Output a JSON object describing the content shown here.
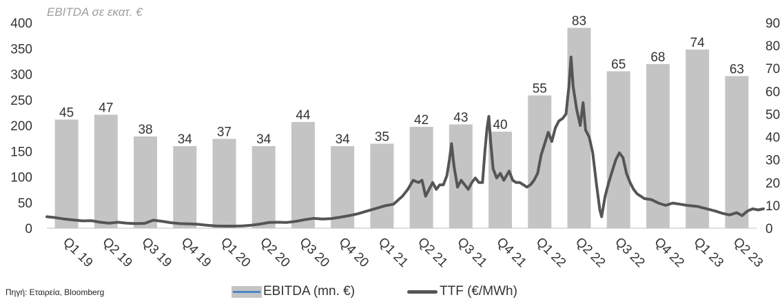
{
  "subtitle": "EBITDA σε εκατ. €",
  "source": "Πηγή: Εταιρεία, Bloomberg",
  "colors": {
    "bar": "#c4c4c4",
    "line": "#555555",
    "legend_bar_accent": "#4a86c5"
  },
  "chart_data": {
    "type": "bar",
    "categories": [
      "Q1 19",
      "Q2 19",
      "Q3 19",
      "Q4 19",
      "Q1 20",
      "Q2 20",
      "Q3 20",
      "Q4 20",
      "Q1 21",
      "Q2 21",
      "Q3 21",
      "Q4 21",
      "Q1 22",
      "Q2 22",
      "Q3 22",
      "Q4 22",
      "Q1 23",
      "Q2 23"
    ],
    "series": [
      {
        "name": "EBITDA (mn. €)",
        "type": "bar",
        "axis": "left",
        "values": [
          45,
          47,
          38,
          34,
          37,
          34,
          44,
          34,
          35,
          42,
          43,
          40,
          55,
          83,
          65,
          68,
          74,
          63
        ],
        "labels": [
          "45",
          "47",
          "38",
          "34",
          "37",
          "34",
          "44",
          "34",
          "35",
          "42",
          "43",
          "40",
          "55",
          "83",
          "65",
          "68",
          "74",
          "63"
        ]
      },
      {
        "name": "TTF (€/MWh)",
        "type": "line",
        "axis": "right",
        "points": [
          [
            0.0,
            5
          ],
          [
            0.25,
            4.6
          ],
          [
            0.5,
            4.0
          ],
          [
            0.75,
            3.6
          ],
          [
            1.0,
            3.2
          ],
          [
            1.25,
            3.3
          ],
          [
            1.5,
            2.6
          ],
          [
            1.75,
            2.2
          ],
          [
            2.0,
            2.6
          ],
          [
            2.25,
            2.2
          ],
          [
            2.5,
            2.0
          ],
          [
            2.75,
            2.1
          ],
          [
            3.0,
            3.5
          ],
          [
            3.25,
            3.0
          ],
          [
            3.5,
            2.4
          ],
          [
            3.75,
            2.0
          ],
          [
            4.0,
            1.9
          ],
          [
            4.25,
            1.7
          ],
          [
            4.5,
            1.3
          ],
          [
            4.75,
            1.0
          ],
          [
            5.0,
            0.9
          ],
          [
            5.25,
            0.9
          ],
          [
            5.5,
            1.0
          ],
          [
            5.75,
            1.3
          ],
          [
            6.0,
            1.8
          ],
          [
            6.25,
            2.5
          ],
          [
            6.5,
            2.6
          ],
          [
            6.75,
            2.5
          ],
          [
            7.0,
            3.0
          ],
          [
            7.25,
            3.7
          ],
          [
            7.5,
            4.3
          ],
          [
            7.75,
            4.0
          ],
          [
            8.0,
            4.2
          ],
          [
            8.25,
            4.8
          ],
          [
            8.5,
            5.5
          ],
          [
            8.75,
            6.3
          ],
          [
            9.0,
            7.5
          ],
          [
            9.25,
            8.6
          ],
          [
            9.5,
            9.8
          ],
          [
            9.75,
            10.5
          ],
          [
            10.0,
            14
          ],
          [
            10.15,
            17
          ],
          [
            10.3,
            21
          ],
          [
            10.45,
            20
          ],
          [
            10.55,
            21
          ],
          [
            10.65,
            14
          ],
          [
            10.75,
            17
          ],
          [
            10.85,
            20
          ],
          [
            10.95,
            17
          ],
          [
            11.05,
            19
          ],
          [
            11.15,
            19
          ],
          [
            11.25,
            23
          ],
          [
            11.32,
            30
          ],
          [
            11.38,
            37
          ],
          [
            11.45,
            27
          ],
          [
            11.55,
            18
          ],
          [
            11.65,
            21
          ],
          [
            11.75,
            19
          ],
          [
            11.85,
            17
          ],
          [
            11.95,
            20
          ],
          [
            12.05,
            22
          ],
          [
            12.15,
            20
          ],
          [
            12.25,
            20
          ],
          [
            12.32,
            34
          ],
          [
            12.38,
            44
          ],
          [
            12.43,
            49
          ],
          [
            12.48,
            38
          ],
          [
            12.55,
            26
          ],
          [
            12.65,
            22
          ],
          [
            12.75,
            24
          ],
          [
            12.85,
            21
          ],
          [
            13.0,
            25
          ],
          [
            13.1,
            21
          ],
          [
            13.2,
            20
          ],
          [
            13.3,
            20
          ],
          [
            13.4,
            19
          ],
          [
            13.5,
            18
          ],
          [
            13.6,
            19
          ],
          [
            13.7,
            21
          ],
          [
            13.8,
            24
          ],
          [
            13.9,
            32
          ],
          [
            14.0,
            37
          ],
          [
            14.1,
            42
          ],
          [
            14.2,
            38
          ],
          [
            14.3,
            44
          ],
          [
            14.4,
            47
          ],
          [
            14.5,
            48
          ],
          [
            14.6,
            50
          ],
          [
            14.68,
            62
          ],
          [
            14.74,
            75
          ],
          [
            14.8,
            62
          ],
          [
            14.9,
            52
          ],
          [
            15.0,
            45
          ],
          [
            15.08,
            55
          ],
          [
            15.15,
            43
          ],
          [
            15.25,
            40
          ],
          [
            15.35,
            33
          ],
          [
            15.45,
            20
          ],
          [
            15.55,
            8
          ],
          [
            15.6,
            5
          ],
          [
            15.7,
            14
          ],
          [
            15.8,
            20
          ],
          [
            15.9,
            25
          ],
          [
            16.0,
            30
          ],
          [
            16.1,
            33
          ],
          [
            16.2,
            31
          ],
          [
            16.3,
            24
          ],
          [
            16.4,
            20
          ],
          [
            16.5,
            17
          ],
          [
            16.6,
            15
          ],
          [
            16.7,
            14
          ],
          [
            16.8,
            13
          ],
          [
            17.0,
            12.5
          ],
          [
            17.2,
            11
          ],
          [
            17.4,
            10
          ],
          [
            17.6,
            11
          ],
          [
            17.8,
            10.5
          ],
          [
            18.0,
            10
          ],
          [
            18.3,
            9.5
          ],
          [
            18.6,
            8.3
          ],
          [
            18.8,
            7.5
          ],
          [
            19.0,
            6.5
          ],
          [
            19.2,
            5.8
          ],
          [
            19.4,
            6.8
          ],
          [
            19.55,
            5.5
          ],
          [
            19.7,
            7.5
          ],
          [
            19.85,
            8.5
          ],
          [
            20.0,
            8.0
          ],
          [
            20.15,
            8.5
          ]
        ]
      }
    ],
    "y_left": {
      "min": 0,
      "max": 400,
      "ticks": [
        0,
        50,
        100,
        150,
        200,
        250,
        300,
        350,
        400
      ]
    },
    "y_right": {
      "min": 0,
      "max": 90,
      "ticks": [
        0,
        10,
        20,
        30,
        40,
        50,
        60,
        70,
        80,
        90
      ]
    },
    "grid": false,
    "legend_position": "bottom-center"
  }
}
